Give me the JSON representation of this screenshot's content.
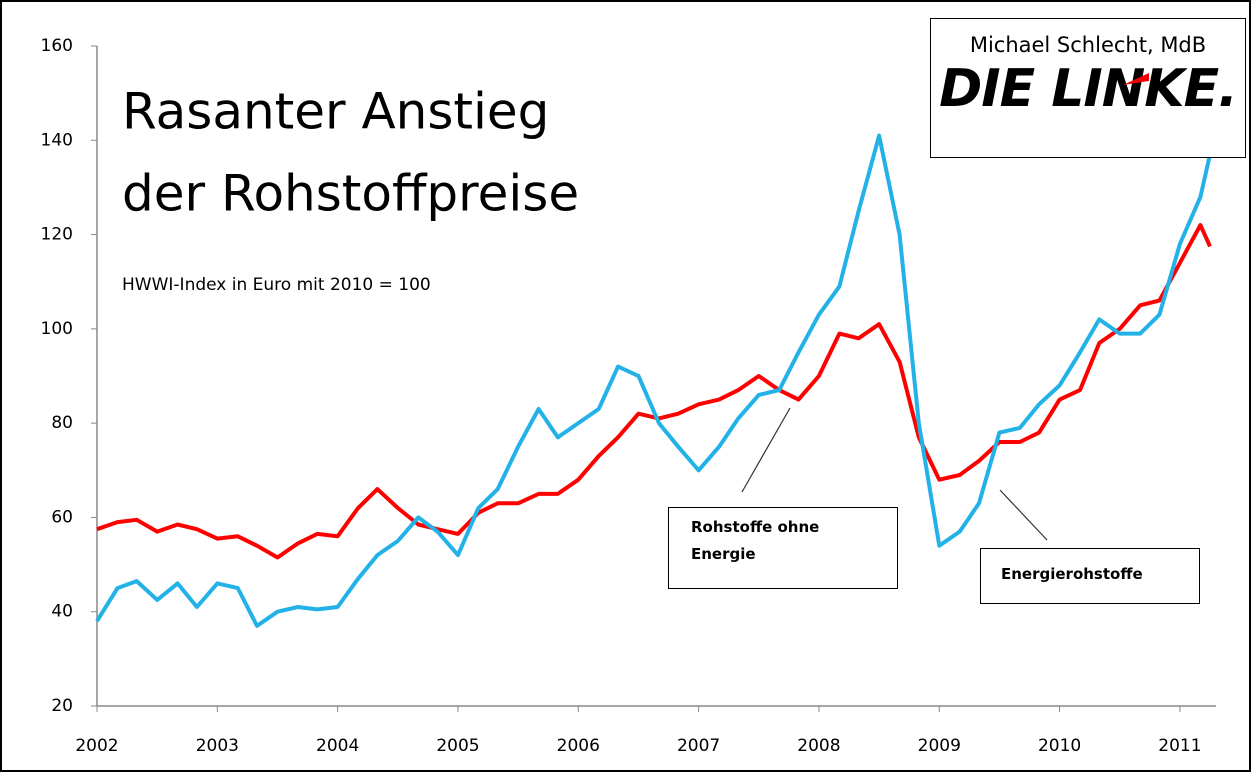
{
  "chart_data": {
    "type": "line",
    "title_lines": [
      "Rasanter Anstieg",
      "der Rohstoffpreise"
    ],
    "subtitle": "HWWI-Index in Euro mit 2010 = 100",
    "author": "Michael Schlecht, MdB",
    "logo": "DIE LINKE.",
    "x": [
      2002.0,
      2002.17,
      2002.33,
      2002.5,
      2002.67,
      2002.83,
      2003.0,
      2003.17,
      2003.33,
      2003.5,
      2003.67,
      2003.83,
      2004.0,
      2004.17,
      2004.33,
      2004.5,
      2004.67,
      2004.83,
      2005.0,
      2005.17,
      2005.33,
      2005.5,
      2005.67,
      2005.83,
      2006.0,
      2006.17,
      2006.33,
      2006.5,
      2006.67,
      2006.83,
      2007.0,
      2007.17,
      2007.33,
      2007.5,
      2007.67,
      2007.83,
      2008.0,
      2008.17,
      2008.33,
      2008.5,
      2008.67,
      2008.83,
      2009.0,
      2009.17,
      2009.33,
      2009.5,
      2009.67,
      2009.83,
      2010.0,
      2010.17,
      2010.33,
      2010.5,
      2010.67,
      2010.83,
      2011.0,
      2011.17,
      2011.25
    ],
    "series": [
      {
        "name": "Rohstoffe ohne Energie",
        "color": "#ff0000",
        "values": [
          57.5,
          59,
          59.5,
          57,
          58.5,
          57.5,
          55.5,
          56,
          54,
          51.5,
          54.5,
          56.5,
          56,
          62,
          66,
          62,
          58.5,
          57.5,
          56.5,
          61,
          63,
          63,
          65,
          65,
          68,
          73,
          77,
          82,
          81,
          82,
          84,
          85,
          87,
          90,
          87,
          85,
          90,
          99,
          98,
          101,
          93,
          77,
          68,
          69,
          72,
          76,
          76,
          78,
          85,
          87,
          97,
          100,
          105,
          106,
          114,
          122,
          117.5
        ]
      },
      {
        "name": "Energierohstoffe",
        "color": "#22b2e8",
        "values": [
          38,
          45,
          46.5,
          42.5,
          46,
          41,
          46,
          45,
          37,
          40,
          41,
          40.5,
          41,
          47,
          52,
          55,
          60,
          57,
          52,
          62,
          66,
          75,
          83,
          77,
          80,
          83,
          92,
          90,
          80,
          75,
          70,
          75,
          81,
          86,
          87,
          95,
          103,
          109,
          125,
          141,
          120,
          80,
          54,
          57,
          63,
          78,
          79,
          84,
          88,
          95,
          102,
          99,
          99,
          103,
          118,
          128,
          137
        ]
      }
    ],
    "xlim": [
      2002,
      2011.3
    ],
    "xticks": [
      2002,
      2003,
      2004,
      2005,
      2006,
      2007,
      2008,
      2009,
      2010,
      2011
    ],
    "ylim": [
      20,
      160
    ],
    "yticks": [
      20,
      40,
      60,
      80,
      100,
      120,
      140,
      160
    ]
  }
}
